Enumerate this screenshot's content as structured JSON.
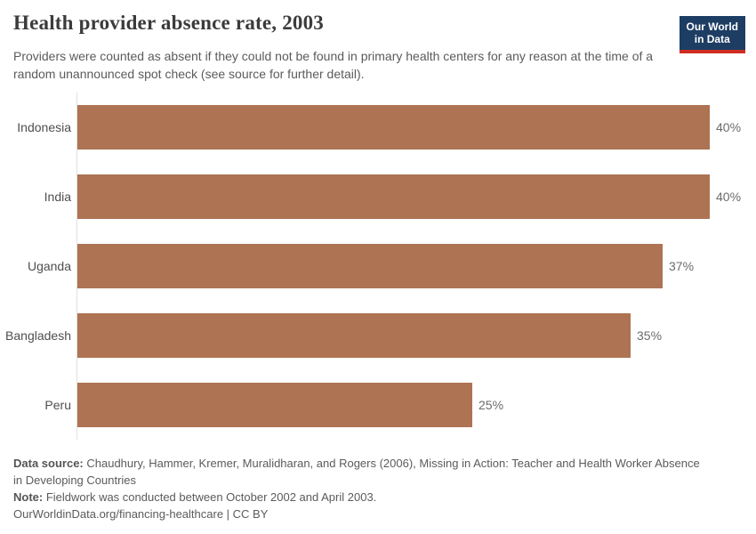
{
  "header": {
    "title": "Health provider absence rate, 2003",
    "subtitle": "Providers were counted as absent if they could not be found in primary health centers for any reason at the time of a random unannounced spot check (see source for further detail).",
    "logo": {
      "line1": "Our World",
      "line2": "in Data",
      "bg_color": "#1d3d63",
      "accent_color": "#cf2d22"
    }
  },
  "chart_data": {
    "type": "bar",
    "orientation": "horizontal",
    "title": "Health provider absence rate, 2003",
    "categories": [
      "Indonesia",
      "India",
      "Uganda",
      "Bangladesh",
      "Peru"
    ],
    "values": [
      40,
      40,
      37,
      35,
      25
    ],
    "value_labels": [
      "40%",
      "40%",
      "37%",
      "35%",
      "25%"
    ],
    "xlabel": "",
    "ylabel": "",
    "xlim": [
      0,
      40
    ],
    "grid": false,
    "legend": "none",
    "bar_color": "#ad7353",
    "axis_color": "#e0e0e0"
  },
  "footer": {
    "source_label": "Data source:",
    "source_text": " Chaudhury, Hammer, Kremer, Muralidharan, and Rogers (2006), Missing in Action: Teacher and Health Worker Absence in Developing Countries",
    "note_label": "Note:",
    "note_text": " Fieldwork was conducted between October 2002 and April 2003.",
    "link_text": "OurWorldinData.org/financing-healthcare | CC BY"
  }
}
